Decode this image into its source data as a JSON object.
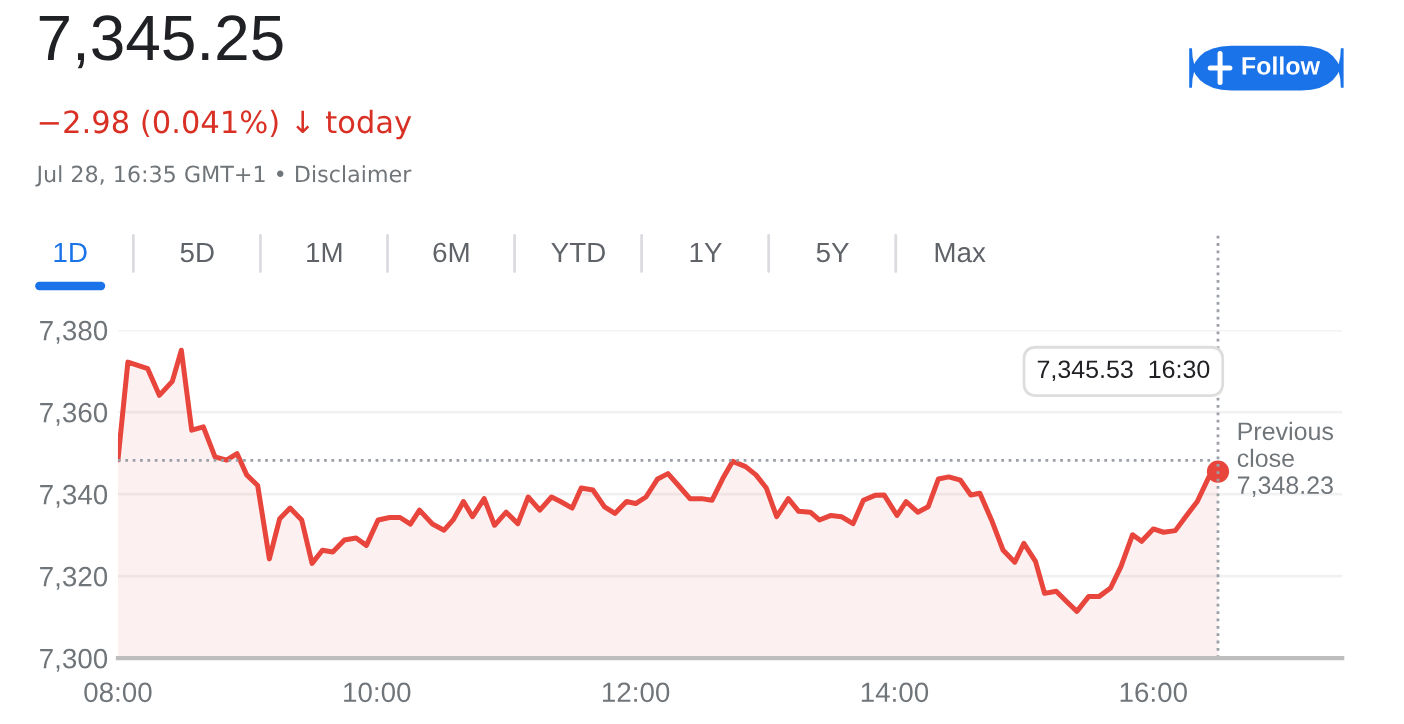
{
  "chart_data": {
    "type": "area",
    "title": "7,345.25",
    "subtitle": "−2.98 (0.041%) ↓ today",
    "x": [
      8.0,
      8.077,
      8.23,
      8.32,
      8.42,
      8.49,
      8.57,
      8.66,
      8.75,
      8.84,
      8.92,
      8.995,
      9.08,
      9.17,
      9.25,
      9.33,
      9.42,
      9.5,
      9.58,
      9.66,
      9.75,
      9.84,
      9.92,
      10.01,
      10.1,
      10.18,
      10.26,
      10.33,
      10.43,
      10.52,
      10.59,
      10.67,
      10.74,
      10.83,
      10.91,
      11.0,
      11.09,
      11.17,
      11.26,
      11.35,
      11.42,
      11.51,
      11.58,
      11.67,
      11.76,
      11.84,
      11.93,
      12.0,
      12.08,
      12.17,
      12.25,
      12.34,
      12.42,
      12.51,
      12.59,
      12.68,
      12.75,
      12.85,
      12.93,
      13.01,
      13.09,
      13.18,
      13.26,
      13.35,
      13.42,
      13.51,
      13.59,
      13.68,
      13.76,
      13.85,
      13.92,
      14.02,
      14.09,
      14.18,
      14.26,
      14.34,
      14.42,
      14.51,
      14.59,
      14.66,
      14.75,
      14.84,
      14.93,
      15.0,
      15.09,
      15.16,
      15.25,
      15.33,
      15.41,
      15.5,
      15.58,
      15.67,
      15.75,
      15.84,
      15.91,
      16.0,
      16.08,
      16.17,
      16.25,
      16.34,
      16.43,
      16.5
    ],
    "series": [
      {
        "color": "#e8453c",
        "values": [
          7348.3,
          7372.2,
          7370.6,
          7364.1,
          7367.5,
          7375.1,
          7355.6,
          7356.4,
          7349.1,
          7348.3,
          7349.9,
          7344.7,
          7342.1,
          7324.2,
          7334.0,
          7336.6,
          7333.7,
          7323.1,
          7326.3,
          7325.9,
          7328.8,
          7329.3,
          7327.5,
          7333.7,
          7334.3,
          7334.3,
          7332.7,
          7336.1,
          7332.7,
          7331.2,
          7333.7,
          7338.2,
          7334.5,
          7338.9,
          7332.4,
          7335.6,
          7332.8,
          7339.3,
          7336.1,
          7339.3,
          7338.2,
          7336.6,
          7341.5,
          7341.0,
          7336.9,
          7335.3,
          7338.2,
          7337.7,
          7339.3,
          7343.7,
          7345.0,
          7341.8,
          7338.9,
          7338.9,
          7338.5,
          7344.2,
          7348.0,
          7346.7,
          7344.7,
          7341.5,
          7334.5,
          7338.9,
          7335.8,
          7335.6,
          7333.7,
          7334.8,
          7334.5,
          7332.8,
          7338.5,
          7339.7,
          7339.8,
          7334.8,
          7338.2,
          7335.6,
          7336.9,
          7343.7,
          7344.2,
          7343.4,
          7339.8,
          7340.2,
          7333.7,
          7326.3,
          7323.4,
          7328.0,
          7323.6,
          7315.8,
          7316.3,
          7313.8,
          7311.4,
          7315.0,
          7315.0,
          7317.1,
          7322.3,
          7330.1,
          7328.5,
          7331.5,
          7330.7,
          7331.1,
          7334.5,
          7338.2,
          7344.2,
          7345.5
        ]
      }
    ],
    "xlim": [
      8,
      17.46
    ],
    "ylim": [
      7300,
      7380
    ],
    "xticks": [
      {
        "value": 8,
        "label": "08:00"
      },
      {
        "value": 10,
        "label": "10:00"
      },
      {
        "value": 12,
        "label": "12:00"
      },
      {
        "value": 14,
        "label": "14:00"
      },
      {
        "value": 16,
        "label": "16:00"
      }
    ],
    "yticks": [
      {
        "value": 7300,
        "label": "7,300"
      },
      {
        "value": 7320,
        "label": "7,320"
      },
      {
        "value": 7340,
        "label": "7,340"
      },
      {
        "value": 7360,
        "label": "7,360"
      },
      {
        "value": 7380,
        "label": "7,380"
      }
    ],
    "grid": "y",
    "ref_lines": [
      {
        "axis": "y",
        "value": 7348.23,
        "label": "Previous\nclose\n7,348.23",
        "color": "#9aa0a6",
        "line_style": "dotted"
      },
      {
        "axis": "x",
        "value": 16.5,
        "color": "#9aa0a6",
        "line_style": "dotted"
      }
    ],
    "annotations": [
      "Jul 28, 16:35 GMT+1 • Disclaimer",
      "Follow",
      "1D",
      "5D",
      "1M",
      "6M",
      "YTD",
      "1Y",
      "5Y",
      "Max",
      "7,345.53  16:30"
    ]
  }
}
